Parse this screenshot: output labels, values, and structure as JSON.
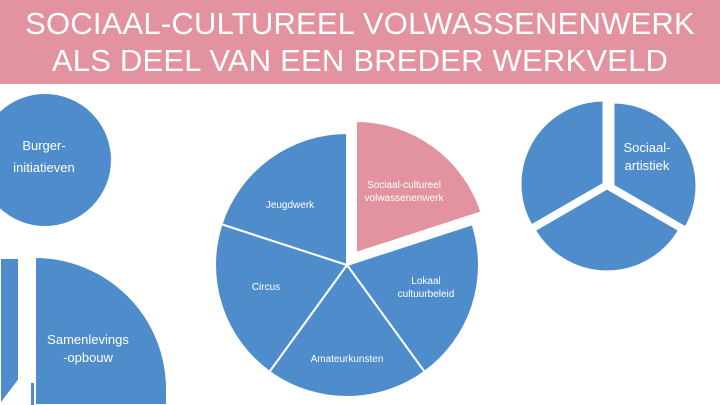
{
  "title": {
    "line1": "SOCIAAL-CULTUREEL VOLWASSENENWERK",
    "line2": "ALS DEEL VAN EEN BREDER WERKVELD"
  },
  "colors": {
    "title_bar": "#e2939f",
    "segment_blue": "#4f8ccb",
    "segment_highlight": "#e2939f",
    "label_text": "#ffffff",
    "background": "#ffffff"
  },
  "circles": {
    "burger": {
      "label_lines": [
        "Burger-",
        "initiatieven"
      ]
    },
    "samenleving": {
      "label_lines": [
        "Samenlevings",
        "-opbouw"
      ]
    },
    "sociaal_artistiek": {
      "label_lines": [
        "Sociaal-",
        "artistiek"
      ]
    }
  },
  "central_pie": {
    "segments": [
      {
        "label_lines": [
          "Sociaal-cultureel",
          "volwassenenwerk"
        ],
        "highlight": true,
        "exploded": true
      },
      {
        "label_lines": [
          "Lokaal",
          "cultuurbeleid"
        ]
      },
      {
        "label_lines": [
          "Amateurkunsten"
        ]
      },
      {
        "label_lines": [
          "Circus"
        ]
      },
      {
        "label_lines": [
          "Jeugdwerk"
        ]
      }
    ]
  }
}
